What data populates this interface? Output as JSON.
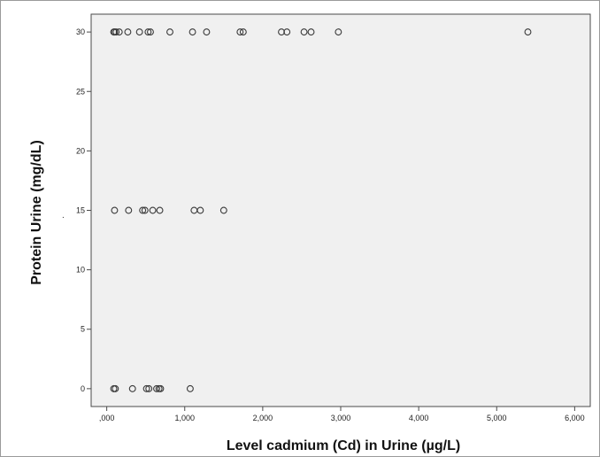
{
  "chart_data": {
    "type": "scatter",
    "title": "",
    "xlabel": "Level cadmium (Cd) in Urine (µg/L)",
    "ylabel": "Protein Urine (mg/dL)",
    "xlim": [
      -0.2,
      6.2
    ],
    "ylim": [
      -1.5,
      31.5
    ],
    "x_ticks": [
      {
        "value": 0,
        "label": ",000"
      },
      {
        "value": 1,
        "label": "1,000"
      },
      {
        "value": 2,
        "label": "2,000"
      },
      {
        "value": 3,
        "label": "3,000"
      },
      {
        "value": 4,
        "label": "4,000"
      },
      {
        "value": 5,
        "label": "5,000"
      },
      {
        "value": 6,
        "label": "6,000"
      }
    ],
    "y_ticks": [
      {
        "value": 0,
        "label": "0"
      },
      {
        "value": 5,
        "label": "5"
      },
      {
        "value": 10,
        "label": "10"
      },
      {
        "value": 15,
        "label": "15"
      },
      {
        "value": 20,
        "label": "20"
      },
      {
        "value": 25,
        "label": "25"
      },
      {
        "value": 30,
        "label": "30"
      }
    ],
    "grid": false,
    "plot_background": "#f0f0f0",
    "marker_color": "#3a3a3a",
    "marker": "hollow-circle",
    "stray_text": ".",
    "points": [
      {
        "x": 0.09,
        "y": 30
      },
      {
        "x": 0.1,
        "y": 30
      },
      {
        "x": 0.12,
        "y": 30
      },
      {
        "x": 0.16,
        "y": 30
      },
      {
        "x": 0.27,
        "y": 30
      },
      {
        "x": 0.42,
        "y": 30
      },
      {
        "x": 0.53,
        "y": 30
      },
      {
        "x": 0.56,
        "y": 30
      },
      {
        "x": 0.81,
        "y": 30
      },
      {
        "x": 1.1,
        "y": 30
      },
      {
        "x": 1.28,
        "y": 30
      },
      {
        "x": 1.71,
        "y": 30
      },
      {
        "x": 1.75,
        "y": 30
      },
      {
        "x": 2.24,
        "y": 30
      },
      {
        "x": 2.31,
        "y": 30
      },
      {
        "x": 2.53,
        "y": 30
      },
      {
        "x": 2.62,
        "y": 30
      },
      {
        "x": 2.97,
        "y": 30
      },
      {
        "x": 5.4,
        "y": 30
      },
      {
        "x": 0.1,
        "y": 15
      },
      {
        "x": 0.28,
        "y": 15
      },
      {
        "x": 0.46,
        "y": 15
      },
      {
        "x": 0.49,
        "y": 15
      },
      {
        "x": 0.59,
        "y": 15
      },
      {
        "x": 0.68,
        "y": 15
      },
      {
        "x": 1.12,
        "y": 15
      },
      {
        "x": 1.2,
        "y": 15
      },
      {
        "x": 1.5,
        "y": 15
      },
      {
        "x": 0.09,
        "y": 0
      },
      {
        "x": 0.11,
        "y": 0
      },
      {
        "x": 0.33,
        "y": 0
      },
      {
        "x": 0.51,
        "y": 0
      },
      {
        "x": 0.54,
        "y": 0
      },
      {
        "x": 0.64,
        "y": 0
      },
      {
        "x": 0.67,
        "y": 0
      },
      {
        "x": 0.69,
        "y": 0
      },
      {
        "x": 1.07,
        "y": 0
      }
    ]
  }
}
